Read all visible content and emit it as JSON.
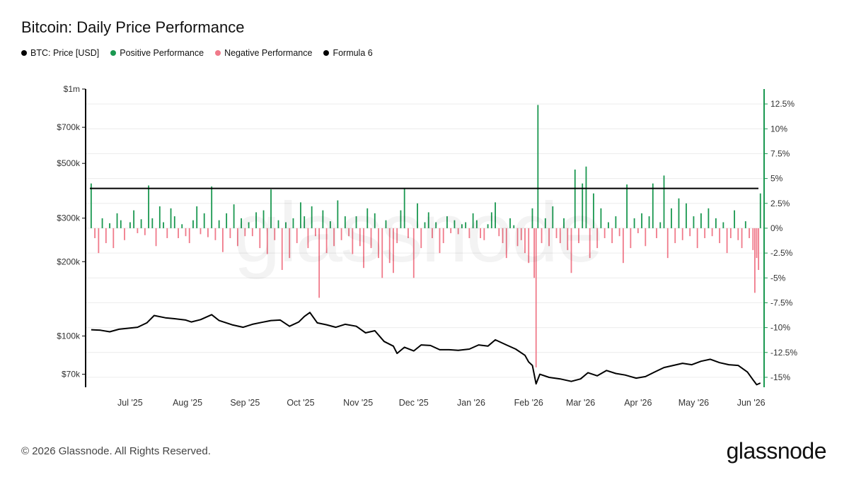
{
  "title": "Bitcoin: Daily Price Performance",
  "legend": [
    {
      "label": "BTC: Price [USD]",
      "color": "#000000"
    },
    {
      "label": "Positive Performance",
      "color": "#1a9850"
    },
    {
      "label": "Negative Performance",
      "color": "#f07a8a"
    },
    {
      "label": "Formula 6",
      "color": "#000000"
    }
  ],
  "watermark": "glassnode",
  "footer": {
    "copyright": "© 2026 Glassnode. All Rights Reserved.",
    "brand": "glassnode"
  },
  "chart_data": {
    "type": "bar",
    "x_ticks": [
      "Jul '25",
      "Aug '25",
      "Sep '25",
      "Oct '25",
      "Nov '25",
      "Dec '25",
      "Jan '26",
      "Feb '26",
      "Mar '26",
      "Apr '26",
      "May '26",
      "Jun '26"
    ],
    "left_axis": {
      "scale": "log",
      "ticks": [
        "$70k",
        "$100k",
        "$200k",
        "$300k",
        "$500k",
        "$700k",
        "$1m"
      ],
      "tick_values": [
        70000,
        100000,
        200000,
        300000,
        500000,
        700000,
        1000000
      ],
      "range": [
        62000,
        1000000
      ]
    },
    "right_axis": {
      "scale": "linear",
      "unit": "%",
      "ticks": [
        "12.5%",
        "10%",
        "7.5%",
        "5%",
        "2.5%",
        "0%",
        "-2.5%",
        "-5%",
        "-7.5%",
        "-10%",
        "-12.5%",
        "-15%"
      ],
      "tick_values": [
        12.5,
        10,
        7.5,
        5,
        2.5,
        0,
        -2.5,
        -5,
        -7.5,
        -10,
        -12.5,
        -15
      ],
      "range": [
        -16,
        14
      ]
    },
    "formula_6_level": 4.0,
    "colors": {
      "positive": "#1a9850",
      "negative": "#f07a8a",
      "price": "#000000",
      "formula": "#000000",
      "right_axis": "#1a9850"
    },
    "series": [
      {
        "name": "BTC: Price [USD]",
        "points": [
          [
            "2025-06-10",
            106000
          ],
          [
            "2025-06-15",
            105500
          ],
          [
            "2025-06-20",
            104000
          ],
          [
            "2025-06-25",
            106500
          ],
          [
            "2025-06-30",
            107500
          ],
          [
            "2025-07-05",
            108500
          ],
          [
            "2025-07-10",
            113000
          ],
          [
            "2025-07-14",
            121000
          ],
          [
            "2025-07-20",
            118500
          ],
          [
            "2025-07-25",
            117500
          ],
          [
            "2025-07-31",
            116000
          ],
          [
            "2025-08-03",
            114000
          ],
          [
            "2025-08-08",
            116500
          ],
          [
            "2025-08-14",
            122000
          ],
          [
            "2025-08-18",
            115500
          ],
          [
            "2025-08-25",
            111000
          ],
          [
            "2025-08-31",
            108500
          ],
          [
            "2025-09-05",
            111500
          ],
          [
            "2025-09-10",
            113500
          ],
          [
            "2025-09-15",
            115500
          ],
          [
            "2025-09-20",
            116000
          ],
          [
            "2025-09-25",
            109500
          ],
          [
            "2025-09-30",
            114000
          ],
          [
            "2025-10-03",
            120000
          ],
          [
            "2025-10-06",
            124500
          ],
          [
            "2025-10-10",
            113000
          ],
          [
            "2025-10-15",
            111000
          ],
          [
            "2025-10-20",
            108500
          ],
          [
            "2025-10-25",
            111500
          ],
          [
            "2025-10-31",
            109500
          ],
          [
            "2025-11-05",
            103000
          ],
          [
            "2025-11-10",
            105000
          ],
          [
            "2025-11-15",
            95000
          ],
          [
            "2025-11-20",
            91000
          ],
          [
            "2025-11-22",
            85000
          ],
          [
            "2025-11-26",
            90000
          ],
          [
            "2025-12-01",
            87000
          ],
          [
            "2025-12-05",
            92000
          ],
          [
            "2025-12-10",
            91500
          ],
          [
            "2025-12-15",
            88000
          ],
          [
            "2025-12-20",
            88000
          ],
          [
            "2025-12-25",
            87500
          ],
          [
            "2025-12-31",
            88500
          ],
          [
            "2026-01-05",
            92000
          ],
          [
            "2026-01-10",
            91000
          ],
          [
            "2026-01-14",
            96500
          ],
          [
            "2026-01-20",
            92000
          ],
          [
            "2026-01-25",
            88500
          ],
          [
            "2026-01-30",
            83500
          ],
          [
            "2026-02-01",
            78500
          ],
          [
            "2026-02-03",
            76000
          ],
          [
            "2026-02-05",
            64000
          ],
          [
            "2026-02-07",
            70000
          ],
          [
            "2026-02-12",
            68000
          ],
          [
            "2026-02-18",
            67000
          ],
          [
            "2026-02-24",
            65500
          ],
          [
            "2026-03-01",
            67000
          ],
          [
            "2026-03-05",
            71000
          ],
          [
            "2026-03-10",
            69000
          ],
          [
            "2026-03-15",
            72500
          ],
          [
            "2026-03-20",
            70500
          ],
          [
            "2026-03-25",
            69500
          ],
          [
            "2026-03-31",
            67500
          ],
          [
            "2026-04-05",
            68500
          ],
          [
            "2026-04-10",
            71500
          ],
          [
            "2026-04-15",
            74500
          ],
          [
            "2026-04-20",
            76000
          ],
          [
            "2026-04-25",
            77500
          ],
          [
            "2026-04-30",
            76500
          ],
          [
            "2026-05-05",
            79000
          ],
          [
            "2026-05-10",
            80500
          ],
          [
            "2026-05-15",
            78000
          ],
          [
            "2026-05-20",
            76500
          ],
          [
            "2026-05-25",
            76000
          ],
          [
            "2026-05-30",
            71500
          ],
          [
            "2026-06-02",
            66500
          ],
          [
            "2026-06-04",
            63500
          ],
          [
            "2026-06-06",
            64500
          ]
        ]
      },
      {
        "name": "Daily Price Performance",
        "unit": "%",
        "points": [
          [
            "2025-06-10",
            4.5
          ],
          [
            "2025-06-12",
            -1.0
          ],
          [
            "2025-06-14",
            -2.5
          ],
          [
            "2025-06-16",
            1.0
          ],
          [
            "2025-06-18",
            -1.5
          ],
          [
            "2025-06-20",
            0.5
          ],
          [
            "2025-06-22",
            -2.0
          ],
          [
            "2025-06-24",
            1.5
          ],
          [
            "2025-06-26",
            0.8
          ],
          [
            "2025-06-28",
            -1.2
          ],
          [
            "2025-07-01",
            0.6
          ],
          [
            "2025-07-03",
            1.8
          ],
          [
            "2025-07-05",
            -0.5
          ],
          [
            "2025-07-07",
            0.9
          ],
          [
            "2025-07-09",
            -0.7
          ],
          [
            "2025-07-11",
            4.3
          ],
          [
            "2025-07-13",
            1.0
          ],
          [
            "2025-07-15",
            -1.8
          ],
          [
            "2025-07-17",
            2.2
          ],
          [
            "2025-07-19",
            0.6
          ],
          [
            "2025-07-21",
            -1.0
          ],
          [
            "2025-07-23",
            2.0
          ],
          [
            "2025-07-25",
            1.2
          ],
          [
            "2025-07-27",
            -1.0
          ],
          [
            "2025-07-29",
            0.4
          ],
          [
            "2025-07-31",
            -0.8
          ],
          [
            "2025-08-02",
            -1.5
          ],
          [
            "2025-08-04",
            0.8
          ],
          [
            "2025-08-06",
            2.2
          ],
          [
            "2025-08-08",
            -0.6
          ],
          [
            "2025-08-10",
            1.5
          ],
          [
            "2025-08-12",
            -0.9
          ],
          [
            "2025-08-14",
            4.2
          ],
          [
            "2025-08-16",
            -1.2
          ],
          [
            "2025-08-18",
            0.8
          ],
          [
            "2025-08-20",
            -2.4
          ],
          [
            "2025-08-22",
            1.5
          ],
          [
            "2025-08-24",
            -1.0
          ],
          [
            "2025-08-26",
            2.4
          ],
          [
            "2025-08-28",
            -1.8
          ],
          [
            "2025-08-30",
            1.0
          ],
          [
            "2025-09-01",
            -0.8
          ],
          [
            "2025-09-03",
            0.6
          ],
          [
            "2025-09-05",
            -0.8
          ],
          [
            "2025-09-07",
            1.6
          ],
          [
            "2025-09-09",
            -2.0
          ],
          [
            "2025-09-11",
            1.8
          ],
          [
            "2025-09-13",
            -2.6
          ],
          [
            "2025-09-15",
            3.9
          ],
          [
            "2025-09-17",
            -1.2
          ],
          [
            "2025-09-19",
            0.8
          ],
          [
            "2025-09-21",
            -4.2
          ],
          [
            "2025-09-23",
            0.6
          ],
          [
            "2025-09-25",
            -3.0
          ],
          [
            "2025-09-27",
            1.0
          ],
          [
            "2025-09-29",
            -1.5
          ],
          [
            "2025-10-01",
            2.6
          ],
          [
            "2025-10-03",
            1.2
          ],
          [
            "2025-10-05",
            -2.0
          ],
          [
            "2025-10-07",
            2.2
          ],
          [
            "2025-10-09",
            -0.8
          ],
          [
            "2025-10-11",
            -7.0
          ],
          [
            "2025-10-13",
            1.8
          ],
          [
            "2025-10-15",
            -2.5
          ],
          [
            "2025-10-17",
            0.7
          ],
          [
            "2025-10-19",
            -1.8
          ],
          [
            "2025-10-21",
            2.8
          ],
          [
            "2025-10-23",
            -1.2
          ],
          [
            "2025-10-25",
            1.2
          ],
          [
            "2025-10-27",
            -0.8
          ],
          [
            "2025-10-29",
            -2.6
          ],
          [
            "2025-10-31",
            1.2
          ],
          [
            "2025-11-02",
            -1.8
          ],
          [
            "2025-11-04",
            -4.0
          ],
          [
            "2025-11-06",
            2.0
          ],
          [
            "2025-11-08",
            -2.0
          ],
          [
            "2025-11-10",
            1.5
          ],
          [
            "2025-11-12",
            -3.0
          ],
          [
            "2025-11-14",
            -5.0
          ],
          [
            "2025-11-16",
            0.8
          ],
          [
            "2025-11-18",
            -3.5
          ],
          [
            "2025-11-20",
            -4.5
          ],
          [
            "2025-11-22",
            -1.5
          ],
          [
            "2025-11-24",
            1.8
          ],
          [
            "2025-11-26",
            4.0
          ],
          [
            "2025-11-28",
            -1.0
          ],
          [
            "2025-12-01",
            -5.0
          ],
          [
            "2025-12-03",
            2.5
          ],
          [
            "2025-12-05",
            -2.0
          ],
          [
            "2025-12-07",
            0.6
          ],
          [
            "2025-12-09",
            1.6
          ],
          [
            "2025-12-11",
            -1.0
          ],
          [
            "2025-12-13",
            0.6
          ],
          [
            "2025-12-15",
            -2.5
          ],
          [
            "2025-12-17",
            -1.5
          ],
          [
            "2025-12-19",
            1.2
          ],
          [
            "2025-12-21",
            -0.5
          ],
          [
            "2025-12-23",
            0.8
          ],
          [
            "2025-12-25",
            -0.6
          ],
          [
            "2025-12-27",
            0.4
          ],
          [
            "2025-12-29",
            0.6
          ],
          [
            "2025-12-31",
            -1.0
          ],
          [
            "2026-01-02",
            1.5
          ],
          [
            "2026-01-04",
            0.8
          ],
          [
            "2026-01-06",
            -1.0
          ],
          [
            "2026-01-08",
            -1.2
          ],
          [
            "2026-01-10",
            0.4
          ],
          [
            "2026-01-12",
            1.6
          ],
          [
            "2026-01-14",
            2.6
          ],
          [
            "2026-01-16",
            -0.8
          ],
          [
            "2026-01-18",
            -1.5
          ],
          [
            "2026-01-20",
            -3.0
          ],
          [
            "2026-01-22",
            1.0
          ],
          [
            "2026-01-24",
            0.3
          ],
          [
            "2026-01-26",
            -1.8
          ],
          [
            "2026-01-28",
            -1.2
          ],
          [
            "2026-01-30",
            -2.5
          ],
          [
            "2026-02-01",
            -3.5
          ],
          [
            "2026-02-03",
            2.0
          ],
          [
            "2026-02-04",
            -5.0
          ],
          [
            "2026-02-05",
            -14.0
          ],
          [
            "2026-02-06",
            12.4
          ],
          [
            "2026-02-08",
            -1.5
          ],
          [
            "2026-02-10",
            1.0
          ],
          [
            "2026-02-12",
            -1.8
          ],
          [
            "2026-02-14",
            2.2
          ],
          [
            "2026-02-16",
            -1.0
          ],
          [
            "2026-02-18",
            -1.5
          ],
          [
            "2026-02-20",
            1.0
          ],
          [
            "2026-02-22",
            -2.2
          ],
          [
            "2026-02-24",
            -4.5
          ],
          [
            "2026-02-26",
            5.9
          ],
          [
            "2026-02-28",
            -1.5
          ],
          [
            "2026-03-02",
            4.5
          ],
          [
            "2026-03-04",
            6.2
          ],
          [
            "2026-03-06",
            -3.0
          ],
          [
            "2026-03-08",
            3.5
          ],
          [
            "2026-03-10",
            -2.0
          ],
          [
            "2026-03-12",
            2.0
          ],
          [
            "2026-03-14",
            -1.0
          ],
          [
            "2026-03-16",
            0.6
          ],
          [
            "2026-03-18",
            -1.5
          ],
          [
            "2026-03-20",
            1.2
          ],
          [
            "2026-03-22",
            -0.8
          ],
          [
            "2026-03-24",
            -3.5
          ],
          [
            "2026-03-26",
            4.4
          ],
          [
            "2026-03-28",
            -2.0
          ],
          [
            "2026-03-30",
            1.0
          ],
          [
            "2026-04-01",
            -0.5
          ],
          [
            "2026-04-03",
            1.5
          ],
          [
            "2026-04-05",
            -1.8
          ],
          [
            "2026-04-07",
            1.2
          ],
          [
            "2026-04-09",
            4.5
          ],
          [
            "2026-04-11",
            -1.0
          ],
          [
            "2026-04-13",
            0.6
          ],
          [
            "2026-04-15",
            5.3
          ],
          [
            "2026-04-17",
            -3.0
          ],
          [
            "2026-04-19",
            2.0
          ],
          [
            "2026-04-21",
            -1.5
          ],
          [
            "2026-04-23",
            3.0
          ],
          [
            "2026-04-25",
            -1.2
          ],
          [
            "2026-04-27",
            2.5
          ],
          [
            "2026-04-29",
            -0.8
          ],
          [
            "2026-05-01",
            1.2
          ],
          [
            "2026-05-03",
            -2.0
          ],
          [
            "2026-05-05",
            1.5
          ],
          [
            "2026-05-07",
            -1.0
          ],
          [
            "2026-05-09",
            2.0
          ],
          [
            "2026-05-11",
            -0.8
          ],
          [
            "2026-05-13",
            1.0
          ],
          [
            "2026-05-15",
            -1.5
          ],
          [
            "2026-05-17",
            0.6
          ],
          [
            "2026-05-19",
            -2.5
          ],
          [
            "2026-05-21",
            -1.0
          ],
          [
            "2026-05-23",
            1.8
          ],
          [
            "2026-05-25",
            -1.2
          ],
          [
            "2026-05-27",
            -2.0
          ],
          [
            "2026-05-29",
            0.7
          ],
          [
            "2026-05-31",
            -1.0
          ],
          [
            "2026-06-02",
            -2.2
          ],
          [
            "2026-06-03",
            -6.5
          ],
          [
            "2026-06-04",
            -3.0
          ],
          [
            "2026-06-05",
            -4.2
          ],
          [
            "2026-06-06",
            3.5
          ]
        ]
      },
      {
        "name": "Formula 6",
        "value": 4.0
      }
    ]
  }
}
